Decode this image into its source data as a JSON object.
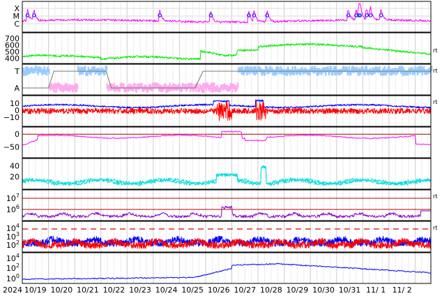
{
  "chart_data": {
    "type": "line",
    "title": "",
    "x_axis": {
      "year_label": "2024",
      "dates": [
        "10/19",
        "10/20",
        "10/21",
        "10/22",
        "10/23",
        "10/24",
        "10/25",
        "10/26",
        "10/27",
        "10/28",
        "10/29",
        "10/30",
        "10/31",
        "11/ 1",
        "11/ 2"
      ],
      "days_range": [
        0,
        15.6
      ]
    },
    "panels": [
      {
        "key": "xray",
        "row_labels": [
          "X",
          "M",
          "C"
        ],
        "side_label": "",
        "line_color": "#ff00ff",
        "marker_color": "#0000ff",
        "flare_days": [
          0.2,
          0.45,
          5.25,
          7.2,
          8.65,
          8.85,
          9.35,
          12.45,
          12.75,
          12.85,
          12.9,
          13.15,
          13.3,
          13.7
        ]
      },
      {
        "key": "speed",
        "tick_labels": [
          "700",
          "600",
          "500",
          "400"
        ],
        "ylim": [
          350,
          750
        ],
        "side_label": "rt",
        "line_color": "#00ee00"
      },
      {
        "key": "polarity",
        "row_labels": [
          "T",
          "A"
        ],
        "side_label": "rt",
        "colors": {
          "toward": "#99ccff",
          "away": "#ffaaee",
          "trace": "#777777"
        }
      },
      {
        "key": "imf",
        "tick_labels": [
          "10",
          "0",
          "−10"
        ],
        "ylim": [
          -20,
          18
        ],
        "side_label": "rt",
        "colors": {
          "bt": "#0000ff",
          "bz": "#ff0000"
        }
      },
      {
        "key": "dst",
        "tick_labels": [
          "0",
          "−50"
        ],
        "ylim": [
          -85,
          20
        ],
        "side_label": "",
        "colors": {
          "line": "#ff00ff",
          "zero": "#aa0000"
        }
      },
      {
        "key": "kp",
        "tick_labels": [
          "40",
          "20"
        ],
        "ylim": [
          0,
          50
        ],
        "side_label": "",
        "line_color": "#00dddd"
      },
      {
        "key": "proton",
        "tick_labels": [
          "10^7",
          "10^6"
        ],
        "side_label": "rt",
        "colors": {
          "line": "#8800cc",
          "ref": "#bb0000"
        }
      },
      {
        "key": "particle",
        "tick_labels": [
          "10^4",
          "10^3",
          "10^2"
        ],
        "side_label": "rt",
        "colors": {
          "a": "#0000ff",
          "b": "#ff0000",
          "dash": "#dd0000"
        }
      },
      {
        "key": "electron",
        "tick_labels": [
          "10^4",
          "10^2",
          "10^0"
        ],
        "side_label": "",
        "line_color": "#0000ff"
      }
    ]
  }
}
